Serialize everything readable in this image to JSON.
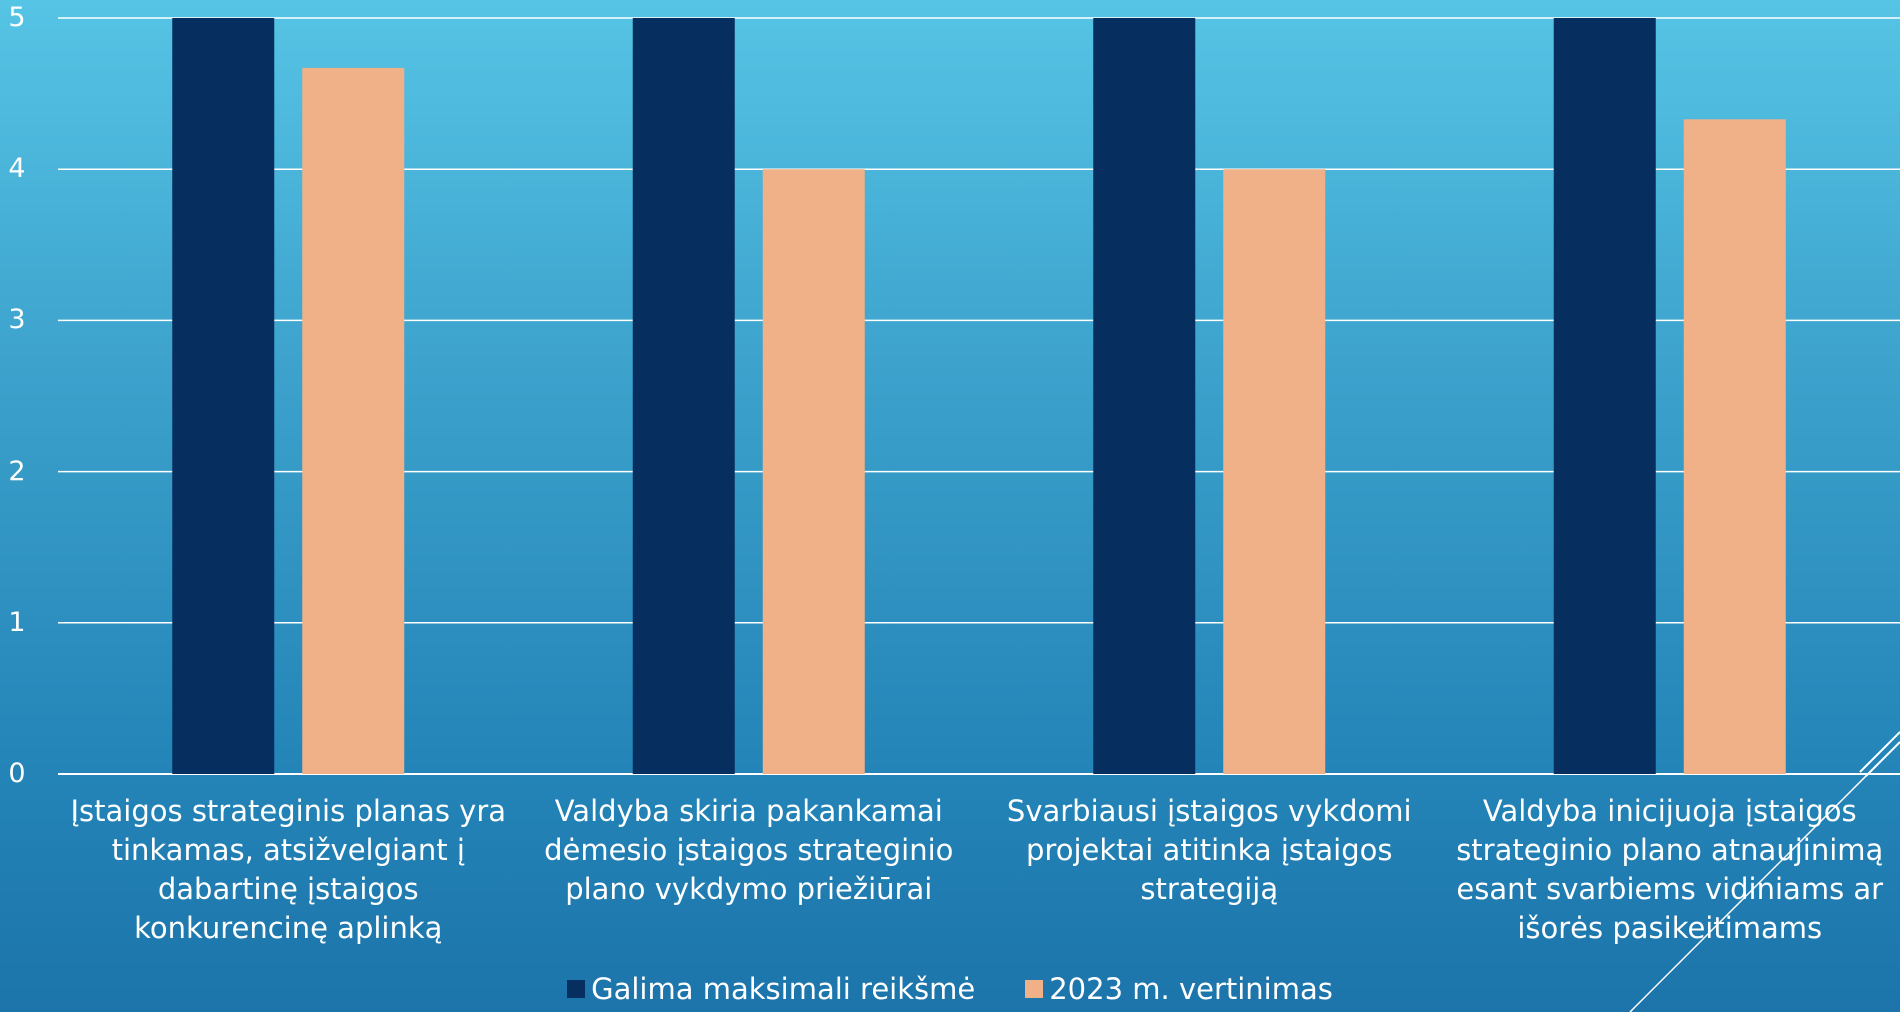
{
  "chart_data": {
    "type": "bar",
    "categories": [
      [
        "Įstaigos strateginis planas yra",
        "tinkamas, atsižvelgiant į",
        "dabartinę įstaigos",
        "konkurencinę aplinką"
      ],
      [
        "Valdyba skiria pakankamai",
        "dėmesio įstaigos strateginio",
        "plano vykdymo priežiūrai"
      ],
      [
        "Svarbiausi įstaigos vykdomi",
        "projektai atitinka įstaigos",
        "strategiją"
      ],
      [
        "Valdyba inicijuoja įstaigos",
        "strateginio plano atnaujinimą",
        "esant svarbiems vidiniams ar",
        "išorės pasikeitimams"
      ]
    ],
    "series": [
      {
        "name": "Galima maksimali reikšmė",
        "color": "#062e5f",
        "values": [
          5,
          5,
          5,
          5
        ]
      },
      {
        "name": "2023 m. vertinimas",
        "color": "#f0b189",
        "values": [
          4.67,
          4,
          4,
          4.33
        ]
      }
    ],
    "ylim": [
      0,
      5
    ],
    "yticks": [
      "0",
      "1",
      "2",
      "3",
      "4",
      "5"
    ],
    "grid": true,
    "legend_position": "bottom"
  }
}
